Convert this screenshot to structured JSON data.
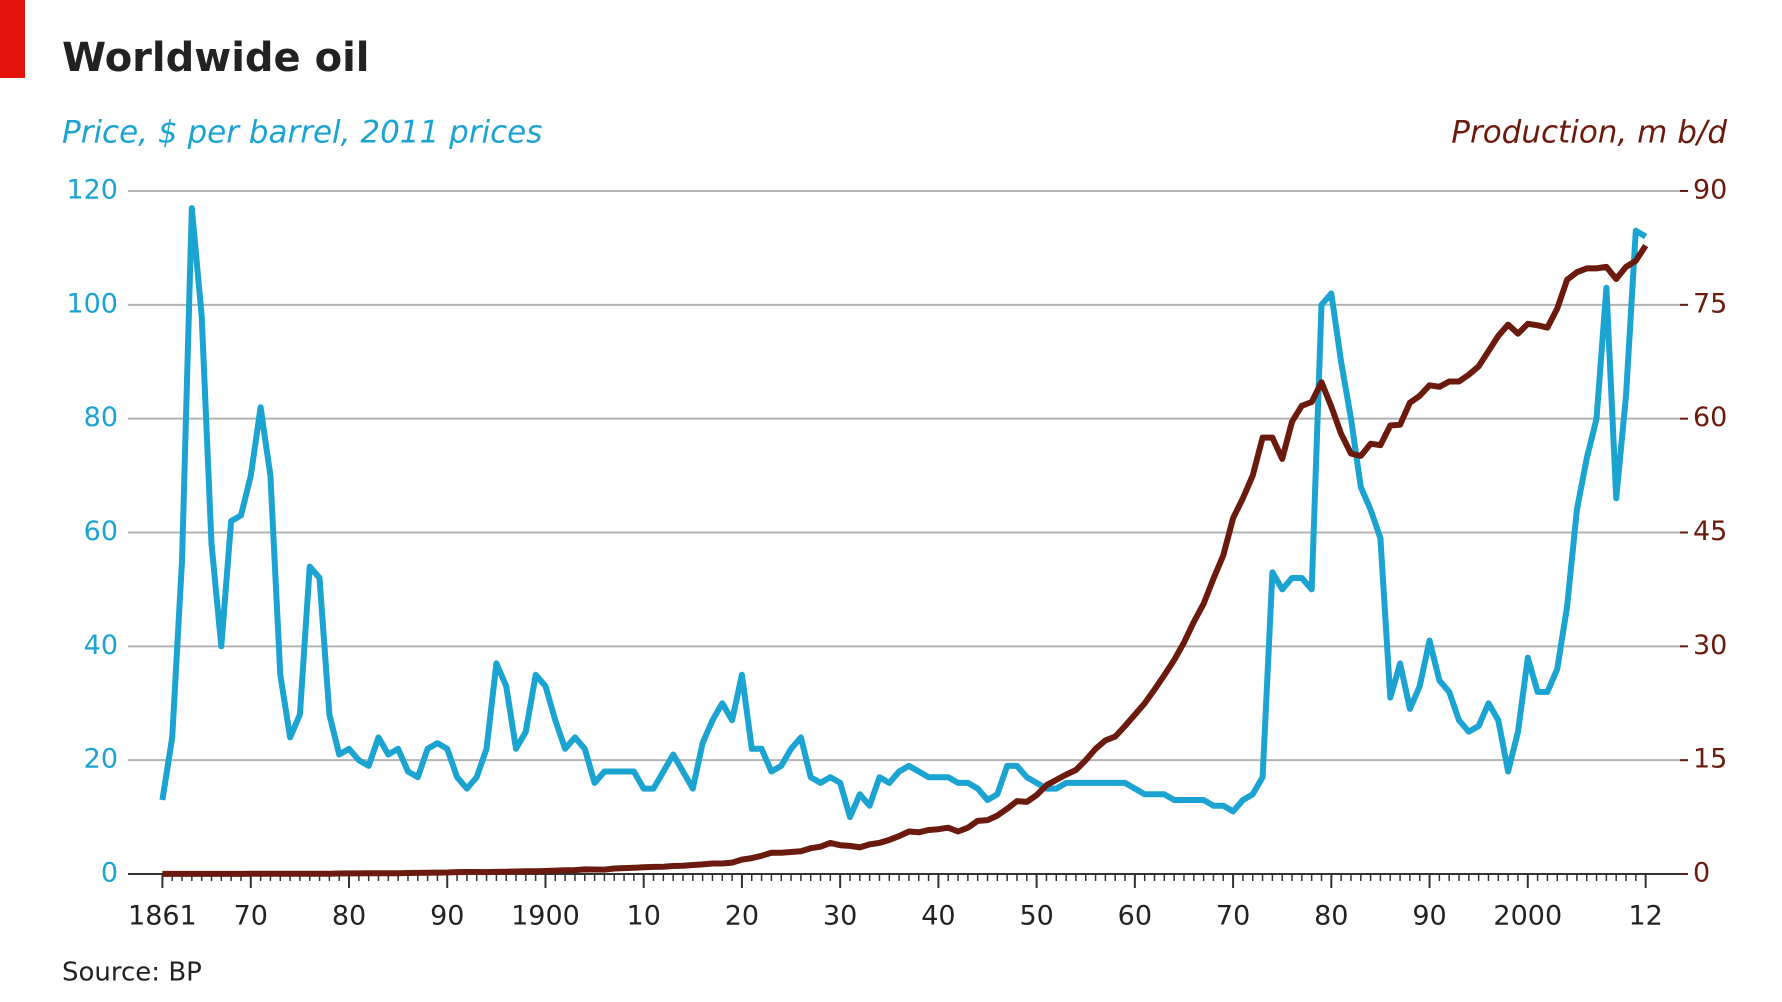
{
  "chart_data": {
    "type": "line",
    "title": "Worldwide oil",
    "ylabel": "Price, $ per barrel, 2011 prices",
    "y2label": "Production, m b/d",
    "source": "Source: BP",
    "x": [
      1861,
      1862,
      1863,
      1864,
      1865,
      1866,
      1867,
      1868,
      1869,
      1870,
      1871,
      1872,
      1873,
      1874,
      1875,
      1876,
      1877,
      1878,
      1879,
      1880,
      1881,
      1882,
      1883,
      1884,
      1885,
      1886,
      1887,
      1888,
      1889,
      1890,
      1891,
      1892,
      1893,
      1894,
      1895,
      1896,
      1897,
      1898,
      1899,
      1900,
      1901,
      1902,
      1903,
      1904,
      1905,
      1906,
      1907,
      1908,
      1909,
      1910,
      1911,
      1912,
      1913,
      1914,
      1915,
      1916,
      1917,
      1918,
      1919,
      1920,
      1921,
      1922,
      1923,
      1924,
      1925,
      1926,
      1927,
      1928,
      1929,
      1930,
      1931,
      1932,
      1933,
      1934,
      1935,
      1936,
      1937,
      1938,
      1939,
      1940,
      1941,
      1942,
      1943,
      1944,
      1945,
      1946,
      1947,
      1948,
      1949,
      1950,
      1951,
      1952,
      1953,
      1954,
      1955,
      1956,
      1957,
      1958,
      1959,
      1960,
      1961,
      1962,
      1963,
      1964,
      1965,
      1966,
      1967,
      1968,
      1969,
      1970,
      1971,
      1972,
      1973,
      1974,
      1975,
      1976,
      1977,
      1978,
      1979,
      1980,
      1981,
      1982,
      1983,
      1984,
      1985,
      1986,
      1987,
      1988,
      1989,
      1990,
      1991,
      1992,
      1993,
      1994,
      1995,
      1996,
      1997,
      1998,
      1999,
      2000,
      2001,
      2002,
      2003,
      2004,
      2005,
      2006,
      2007,
      2008,
      2009,
      2010,
      2011,
      2012
    ],
    "series": [
      {
        "name": "Price, $ per barrel, 2011 prices",
        "color": "#1ba3d1",
        "axis": "y",
        "values": [
          13,
          24,
          55,
          117,
          98,
          58,
          40,
          62,
          63,
          70,
          82,
          70,
          35,
          24,
          28,
          54,
          52,
          28,
          21,
          22,
          20,
          19,
          24,
          21,
          22,
          18,
          17,
          22,
          23,
          22,
          17,
          15,
          17,
          22,
          37,
          33,
          22,
          25,
          35,
          33,
          27,
          22,
          24,
          22,
          16,
          18,
          18,
          18,
          18,
          15,
          15,
          18,
          21,
          18,
          15,
          23,
          27,
          30,
          27,
          35,
          22,
          22,
          18,
          19,
          22,
          24,
          17,
          16,
          17,
          16,
          10,
          14,
          12,
          17,
          16,
          18,
          19,
          18,
          17,
          17,
          17,
          16,
          16,
          15,
          13,
          14,
          19,
          19,
          17,
          16,
          15,
          15,
          16,
          16,
          16,
          16,
          16,
          16,
          16,
          15,
          14,
          14,
          14,
          13,
          13,
          13,
          13,
          12,
          12,
          11,
          13,
          14,
          17,
          53,
          50,
          52,
          52,
          50,
          100,
          102,
          90,
          80,
          68,
          64,
          59,
          31,
          37,
          29,
          33,
          41,
          34,
          32,
          27,
          25,
          26,
          30,
          27,
          18,
          25,
          38,
          32,
          32,
          36,
          47,
          64,
          73,
          80,
          103,
          66,
          84,
          113,
          112
        ]
      },
      {
        "name": "Production, m b/d",
        "color": "#6b1a0e",
        "axis": "y2",
        "values": [
          0.01,
          0.01,
          0.01,
          0.01,
          0.01,
          0.01,
          0.01,
          0.01,
          0.01,
          0.02,
          0.02,
          0.02,
          0.03,
          0.03,
          0.03,
          0.03,
          0.04,
          0.04,
          0.06,
          0.08,
          0.08,
          0.09,
          0.1,
          0.11,
          0.11,
          0.13,
          0.14,
          0.16,
          0.18,
          0.2,
          0.25,
          0.27,
          0.27,
          0.25,
          0.28,
          0.3,
          0.33,
          0.35,
          0.37,
          0.4,
          0.45,
          0.5,
          0.52,
          0.6,
          0.59,
          0.58,
          0.72,
          0.78,
          0.82,
          0.88,
          0.94,
          0.96,
          1.05,
          1.1,
          1.18,
          1.26,
          1.38,
          1.38,
          1.5,
          1.9,
          2.1,
          2.4,
          2.8,
          2.8,
          2.9,
          3.0,
          3.4,
          3.6,
          4.1,
          3.8,
          3.7,
          3.5,
          3.9,
          4.1,
          4.5,
          5.0,
          5.6,
          5.5,
          5.8,
          5.9,
          6.1,
          5.6,
          6.1,
          7.0,
          7.1,
          7.7,
          8.6,
          9.6,
          9.5,
          10.4,
          11.7,
          12.4,
          13.1,
          13.7,
          15.0,
          16.5,
          17.6,
          18.1,
          19.5,
          21.0,
          22.5,
          24.3,
          26.2,
          28.2,
          30.5,
          33.2,
          35.6,
          38.9,
          42.0,
          46.9,
          49.5,
          52.5,
          57.5,
          57.5,
          54.7,
          59.6,
          61.7,
          62.2,
          64.8,
          61.6,
          58.0,
          55.4,
          55.1,
          56.7,
          56.5,
          59.1,
          59.2,
          62.1,
          63.0,
          64.4,
          64.2,
          64.9,
          64.9,
          65.8,
          66.9,
          68.9,
          70.9,
          72.4,
          71.2,
          72.5,
          72.3,
          72.0,
          74.5,
          78.3,
          79.3,
          79.8,
          79.8,
          80.0,
          78.4,
          80.0,
          80.8,
          82.8
        ]
      }
    ],
    "xlim": [
      1857.5,
      2015.7
    ],
    "xticks": [
      1861,
      {
        "value": 1870,
        "label": "70"
      },
      {
        "value": 1880,
        "label": "80"
      },
      {
        "value": 1890,
        "label": "90"
      },
      1900,
      {
        "value": 1910,
        "label": "10"
      },
      {
        "value": 1920,
        "label": "20"
      },
      {
        "value": 1930,
        "label": "30"
      },
      {
        "value": 1940,
        "label": "40"
      },
      {
        "value": 1950,
        "label": "50"
      },
      {
        "value": 1960,
        "label": "60"
      },
      {
        "value": 1970,
        "label": "70"
      },
      {
        "value": 1980,
        "label": "80"
      },
      {
        "value": 1990,
        "label": "90"
      },
      2000,
      {
        "value": 2012,
        "label": "12"
      }
    ],
    "ylim": [
      0,
      120
    ],
    "yticks": [
      0,
      20,
      40,
      60,
      80,
      100,
      120
    ],
    "y2lim": [
      0,
      90
    ],
    "y2ticks": [
      0,
      15,
      30,
      45,
      60,
      75,
      90
    ],
    "grid": true
  }
}
